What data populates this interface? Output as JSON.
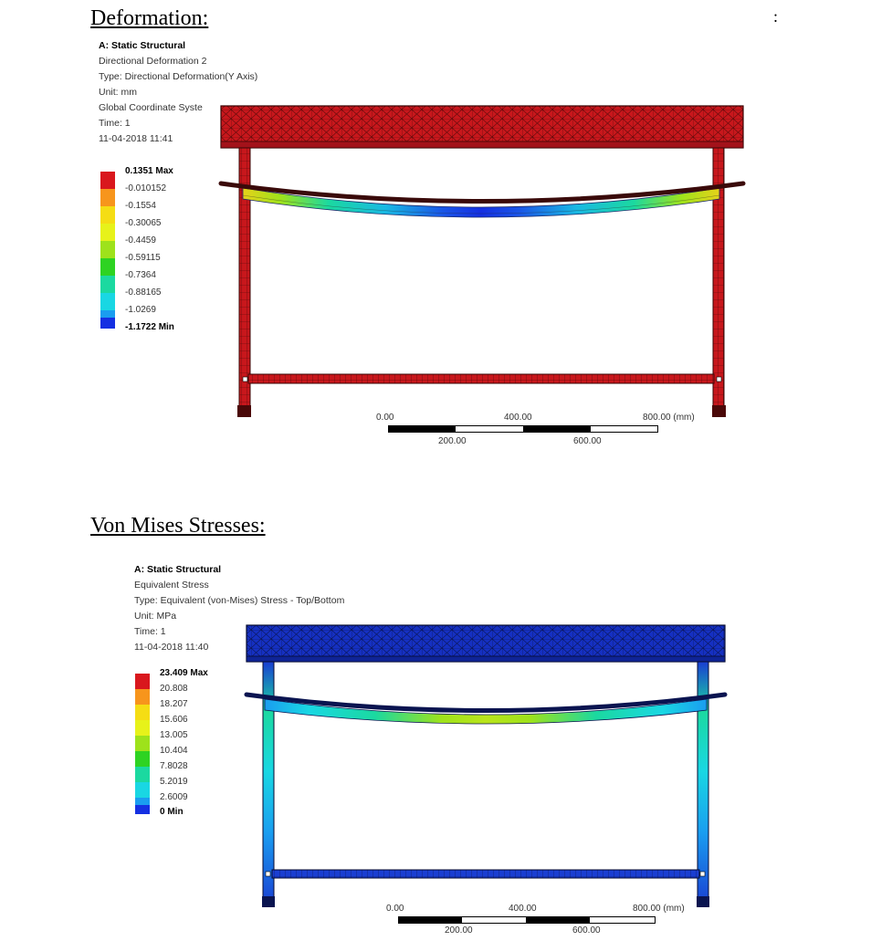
{
  "page": {
    "corner_mark": ":"
  },
  "deformation": {
    "heading": "Deformation:",
    "title": "A: Static Structural",
    "lines": [
      "Directional Deformation 2",
      "Type: Directional Deformation(Y Axis)",
      "Unit: mm",
      "Global Coordinate Syste",
      "Time: 1",
      "11-04-2018 11:41"
    ],
    "legend": [
      {
        "label": "0.1351 Max",
        "color": "#d9171d"
      },
      {
        "label": "-0.010152",
        "color": "#f7951c"
      },
      {
        "label": "-0.1554",
        "color": "#f5dd14"
      },
      {
        "label": "-0.30065",
        "color": "#e7f21a"
      },
      {
        "label": "-0.4459",
        "color": "#9ee21b"
      },
      {
        "label": "-0.59115",
        "color": "#2ed322"
      },
      {
        "label": "-0.7364",
        "color": "#1bd9a0"
      },
      {
        "label": "-0.88165",
        "color": "#19d7e3"
      },
      {
        "label": "-1.0269",
        "color": "#1a9df0"
      },
      {
        "label": "-1.1722 Min",
        "color": "#1530e2"
      }
    ],
    "scale_top": [
      "0.00",
      "400.00",
      "800.00 (mm)"
    ],
    "scale_bottom": [
      "200.00",
      "600.00"
    ]
  },
  "stress": {
    "heading": "Von Mises Stresses:",
    "title": "A: Static Structural",
    "lines": [
      "Equivalent Stress",
      "Type: Equivalent (von-Mises) Stress - Top/Bottom",
      "Unit: MPa",
      "Time: 1",
      "11-04-2018 11:40"
    ],
    "legend": [
      {
        "label": "23.409 Max",
        "color": "#d9171d"
      },
      {
        "label": "20.808",
        "color": "#f7951c"
      },
      {
        "label": "18.207",
        "color": "#f5dd14"
      },
      {
        "label": "15.606",
        "color": "#e7f21a"
      },
      {
        "label": "13.005",
        "color": "#9ee21b"
      },
      {
        "label": "10.404",
        "color": "#2ed322"
      },
      {
        "label": "7.8028",
        "color": "#1bd9a0"
      },
      {
        "label": "5.2019",
        "color": "#19d7e3"
      },
      {
        "label": "2.6009",
        "color": "#1a9df0"
      },
      {
        "label": "0 Min",
        "color": "#1530e2"
      }
    ],
    "scale_top": [
      "0.00",
      "400.00",
      "800.00 (mm)"
    ],
    "scale_bottom": [
      "200.00",
      "600.00"
    ]
  }
}
